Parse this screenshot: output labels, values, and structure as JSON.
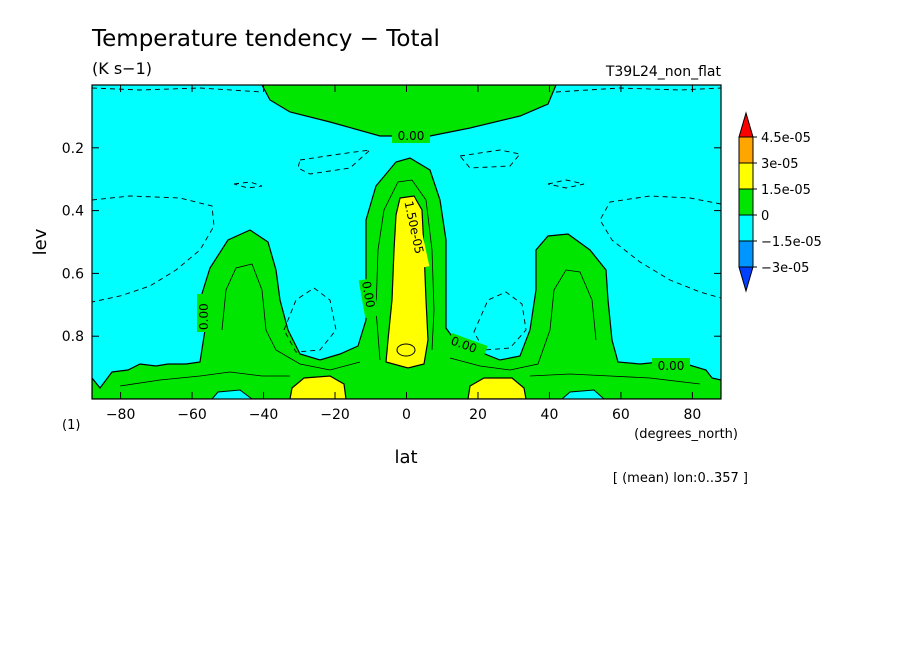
{
  "chart_data": {
    "type": "heatmap",
    "title": "Temperature tendency − Total",
    "units": "(K s−1)",
    "run_label": "T39L24_non_flat",
    "xlabel": "lat",
    "x_units": "(degrees_north)",
    "ylabel": "lev",
    "y_units": "(1)",
    "footnote": "[ (mean) lon:0..357 ]",
    "xlim": [
      -88,
      88
    ],
    "ylim": [
      1.0,
      0.0
    ],
    "y_inverted": true,
    "x_ticks": [
      -80,
      -60,
      -40,
      -20,
      0,
      20,
      40,
      60,
      80
    ],
    "y_ticks": [
      0.2,
      0.4,
      0.6,
      0.8
    ],
    "colorbar": {
      "labels": [
        "4.5e-05",
        "3e-05",
        "1.5e-05",
        "0",
        "−1.5e-05",
        "−3e-05"
      ],
      "levels": [
        4.5e-05,
        3e-05,
        1.5e-05,
        0,
        -1.5e-05,
        -3e-05
      ],
      "colors": [
        "#ff0000",
        "#ffa500",
        "#ffff00",
        "#00e600",
        "#00ffff",
        "#0096ff",
        "#0040ff"
      ]
    },
    "contour_labels": [
      "0.00",
      "1.50e-05",
      "0.00",
      "0.00",
      "0.00",
      "0.00"
    ],
    "regions": [
      {
        "name": "background",
        "value_range": [
          -1.5e-05,
          0
        ],
        "color": "#00ffff"
      },
      {
        "name": "upper-positive-cap",
        "lat_range": [
          -44,
          44
        ],
        "lev_range": [
          0.0,
          0.16
        ],
        "value_range": [
          0,
          1.5e-05
        ],
        "color": "#00e600"
      },
      {
        "name": "equatorial-column",
        "lat_range": [
          -12,
          12
        ],
        "lev_range": [
          0.24,
          1.0
        ],
        "value_range": [
          0,
          1.5e-05
        ],
        "color": "#00e600"
      },
      {
        "name": "equatorial-core",
        "lat_range": [
          -5,
          5
        ],
        "lev_range": [
          0.35,
          0.88
        ],
        "value_range": [
          1.5e-05,
          3e-05
        ],
        "color": "#ffff00"
      },
      {
        "name": "sh-midlat-plume",
        "lat_range": [
          -60,
          -38
        ],
        "lev_range": [
          0.5,
          1.0
        ],
        "value_range": [
          0,
          1.5e-05
        ],
        "color": "#00e600"
      },
      {
        "name": "nh-midlat-plume",
        "lat_range": [
          38,
          60
        ],
        "lev_range": [
          0.5,
          1.0
        ],
        "value_range": [
          0,
          1.5e-05
        ],
        "color": "#00e600"
      },
      {
        "name": "lower-positive-band",
        "lat_range": [
          -88,
          88
        ],
        "lev_range": [
          0.86,
          1.0
        ],
        "value_range": [
          0,
          1.5e-05
        ],
        "color": "#00e600"
      },
      {
        "name": "sh-surface-max",
        "lat_range": [
          -35,
          -20
        ],
        "lev_range": [
          0.93,
          1.0
        ],
        "value_range": [
          1.5e-05,
          3e-05
        ],
        "color": "#ffff00"
      },
      {
        "name": "nh-surface-max",
        "lat_range": [
          19,
          35
        ],
        "lev_range": [
          0.93,
          1.0
        ],
        "value_range": [
          1.5e-05,
          3e-05
        ],
        "color": "#ffff00"
      }
    ],
    "grid": false,
    "legend_position": "right"
  }
}
